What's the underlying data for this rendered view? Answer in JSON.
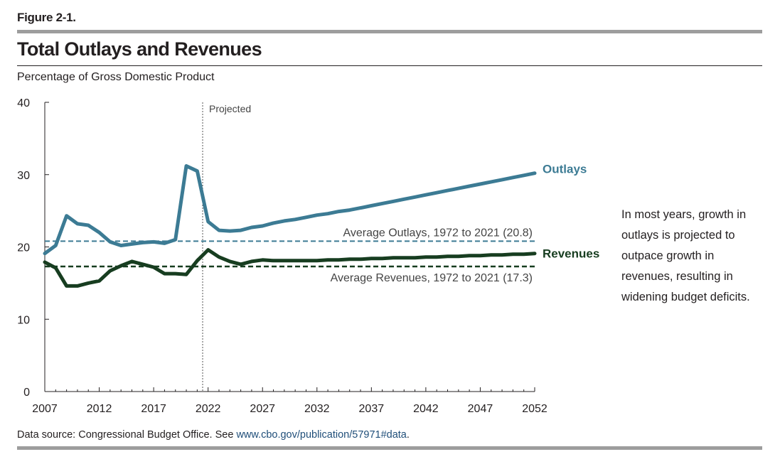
{
  "figure_label": "Figure 2-1.",
  "title": "Total Outlays and Revenues",
  "subtitle": "Percentage of Gross Domestic Product",
  "annotation": "In most years, growth in outlays is projected to outpace growth in revenues, resulting in widening budget deficits.",
  "source": {
    "text": "Data source: Congressional Budget Office. See ",
    "link": "www.cbo.gov/publication/57971#data",
    "end": "."
  },
  "chart_data": {
    "type": "line",
    "xlim": [
      2007,
      2052
    ],
    "ylim": [
      0,
      40
    ],
    "x_ticks": [
      2007,
      2012,
      2017,
      2022,
      2027,
      2032,
      2037,
      2042,
      2047,
      2052
    ],
    "y_ticks": [
      0,
      10,
      20,
      30,
      40
    ],
    "projection_start": 2021.5,
    "projection_label": "Projected",
    "series": [
      {
        "name": "Outlays",
        "color": "#3c7b94",
        "x": [
          2007,
          2008,
          2009,
          2010,
          2011,
          2012,
          2013,
          2014,
          2015,
          2016,
          2017,
          2018,
          2019,
          2020,
          2021,
          2022,
          2023,
          2024,
          2025,
          2026,
          2027,
          2028,
          2029,
          2030,
          2031,
          2032,
          2033,
          2034,
          2035,
          2036,
          2037,
          2038,
          2039,
          2040,
          2041,
          2042,
          2043,
          2044,
          2045,
          2046,
          2047,
          2048,
          2049,
          2050,
          2051,
          2052
        ],
        "values": [
          19.1,
          20.2,
          24.3,
          23.2,
          23.0,
          22.0,
          20.7,
          20.2,
          20.4,
          20.6,
          20.7,
          20.5,
          21.0,
          31.2,
          30.5,
          23.5,
          22.3,
          22.2,
          22.3,
          22.7,
          22.9,
          23.3,
          23.6,
          23.8,
          24.1,
          24.4,
          24.6,
          24.9,
          25.1,
          25.4,
          25.7,
          26.0,
          26.3,
          26.6,
          26.9,
          27.2,
          27.5,
          27.8,
          28.1,
          28.4,
          28.7,
          29.0,
          29.3,
          29.6,
          29.9,
          30.2
        ]
      },
      {
        "name": "Revenues",
        "color": "#173d20",
        "x": [
          2007,
          2008,
          2009,
          2010,
          2011,
          2012,
          2013,
          2014,
          2015,
          2016,
          2017,
          2018,
          2019,
          2020,
          2021,
          2022,
          2023,
          2024,
          2025,
          2026,
          2027,
          2028,
          2029,
          2030,
          2031,
          2032,
          2033,
          2034,
          2035,
          2036,
          2037,
          2038,
          2039,
          2040,
          2041,
          2042,
          2043,
          2044,
          2045,
          2046,
          2047,
          2048,
          2049,
          2050,
          2051,
          2052
        ],
        "values": [
          17.9,
          17.1,
          14.6,
          14.6,
          15.0,
          15.3,
          16.7,
          17.4,
          18.0,
          17.6,
          17.2,
          16.3,
          16.3,
          16.2,
          18.1,
          19.6,
          18.6,
          18.0,
          17.6,
          18.0,
          18.2,
          18.1,
          18.1,
          18.1,
          18.1,
          18.1,
          18.2,
          18.2,
          18.3,
          18.3,
          18.4,
          18.4,
          18.5,
          18.5,
          18.5,
          18.6,
          18.6,
          18.7,
          18.7,
          18.8,
          18.8,
          18.9,
          18.9,
          19.0,
          19.0,
          19.1
        ]
      }
    ],
    "reference_lines": [
      {
        "label": "Average Outlays, 1972 to 2021 (20.8)",
        "value": 20.8,
        "color": "#3c7b94"
      },
      {
        "label": "Average Revenues, 1972 to 2021 (17.3)",
        "value": 17.3,
        "color": "#173d20"
      }
    ]
  }
}
